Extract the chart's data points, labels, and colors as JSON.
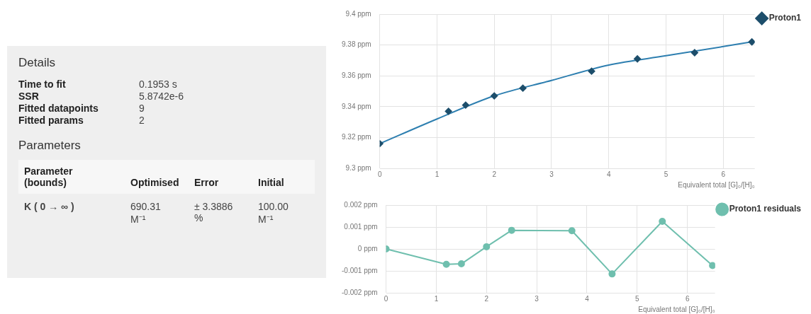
{
  "chart_data": [
    {
      "type": "other",
      "title": "Details",
      "subtitle": "Parameters",
      "annotations": [
        "Time to fit",
        "0.1953 s",
        "SSR",
        "5.8742e-6",
        "Fitted datapoints",
        "9",
        "Fitted params",
        "2",
        "Parameter (bounds)",
        "Optimised",
        "Error",
        "Initial",
        "K ( 0 → ∞ )",
        "690.31 M⁻¹",
        "± 3.3886 %",
        "100.00 M⁻¹"
      ]
    },
    {
      "type": "scatter",
      "xlabel": "Equivalent total [G]₀/[H]₀",
      "xlim": [
        0,
        6.55
      ],
      "xticks": [
        0,
        1,
        2,
        3,
        4,
        5,
        6
      ],
      "ylim": [
        9.3,
        9.4
      ],
      "yticks": [
        {
          "value": 9.3,
          "label": "9.3 ppm"
        },
        {
          "value": 9.32,
          "label": "9.32 ppm"
        },
        {
          "value": 9.34,
          "label": "9.34 ppm"
        },
        {
          "value": 9.36,
          "label": "9.36 ppm"
        },
        {
          "value": 9.38,
          "label": "9.38 ppm"
        },
        {
          "value": 9.4,
          "label": "9.4 ppm"
        }
      ],
      "grid": true,
      "legend": "top right",
      "series": [
        {
          "name": "Proton1",
          "type": "scatter",
          "marker": "diamond",
          "color": "#1d4e6b",
          "x": [
            0,
            1.2,
            1.5,
            2,
            2.5,
            3.7,
            4.5,
            5.5,
            6.5
          ],
          "values": [
            9.316,
            9.337,
            9.341,
            9.347,
            9.352,
            9.363,
            9.371,
            9.375,
            9.382
          ]
        },
        {
          "type": "line",
          "marker": "none",
          "color": "#2e7fb0",
          "x": [
            0,
            1,
            2,
            3,
            4,
            5,
            6,
            6.5
          ],
          "values": [
            9.316,
            9.332,
            9.347,
            9.357,
            9.367,
            9.373,
            9.379,
            9.382
          ]
        }
      ]
    },
    {
      "type": "line",
      "xlabel": "Equivalent total [G]₀/[H]₀",
      "xlim": [
        0,
        6.55
      ],
      "xticks": [
        0,
        1,
        2,
        3,
        4,
        5,
        6
      ],
      "ylim": [
        -0.002,
        0.002
      ],
      "yticks": [
        {
          "value": -0.002,
          "label": "-0.002 ppm"
        },
        {
          "value": -0.001,
          "label": "-0.001 ppm"
        },
        {
          "value": 0,
          "label": "0 ppm"
        },
        {
          "value": 0.001,
          "label": "0.001 ppm"
        },
        {
          "value": 0.002,
          "label": "0.002 ppm"
        }
      ],
      "grid": true,
      "legend": "top right",
      "marker": "circle",
      "series": [
        {
          "name": "Proton1 residuals",
          "color": "#6fbfae",
          "x": [
            0,
            1.2,
            1.5,
            2,
            2.5,
            3.7,
            4.5,
            5.5,
            6.5
          ],
          "values": [
            0,
            -0.0007,
            -0.00068,
            0.0001,
            0.00085,
            0.00083,
            -0.00114,
            0.00126,
            -0.00076
          ]
        }
      ]
    }
  ]
}
